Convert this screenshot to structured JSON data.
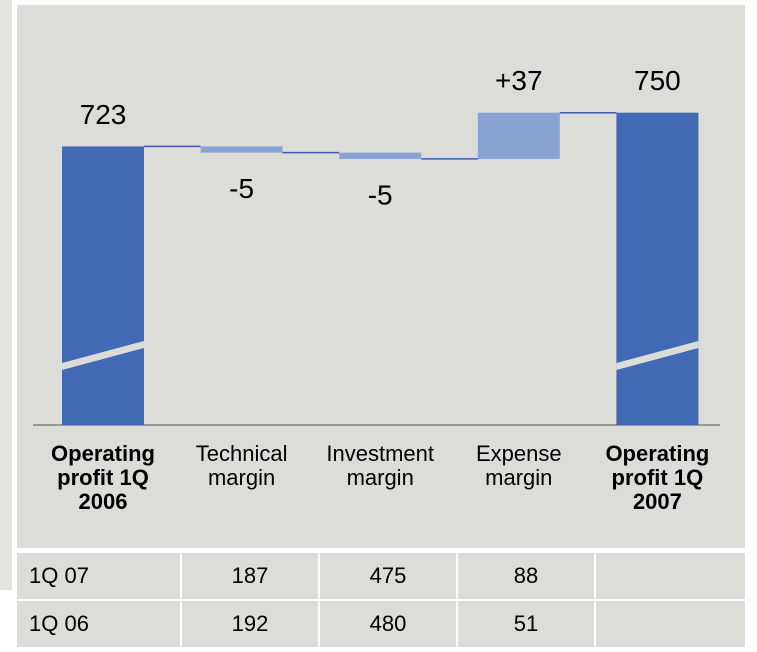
{
  "chart_data": {
    "type": "waterfall",
    "categories": [
      "Operating profit 1Q 2006",
      "Technical margin",
      "Investment margin",
      "Expense margin",
      "Operating profit 1Q 2007"
    ],
    "measure": [
      "total",
      "relative",
      "relative",
      "relative",
      "total"
    ],
    "values": [
      723,
      -5,
      -5,
      37,
      750
    ],
    "value_labels": [
      "723",
      "-5",
      "-5",
      "+37",
      "750"
    ],
    "colors": {
      "total": "#4169b4",
      "relative": "#87a2d3"
    },
    "connector_color": "#3a5ea8",
    "ylim": [
      500,
      829
    ],
    "axis_break": true
  },
  "table": {
    "rows": [
      [
        "1Q 07",
        187,
        475,
        88
      ],
      [
        "1Q 06",
        192,
        480,
        51
      ]
    ]
  }
}
